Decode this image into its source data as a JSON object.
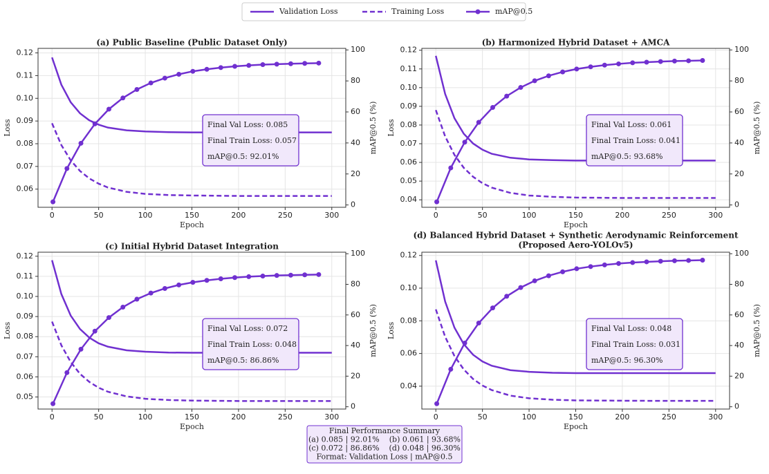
{
  "chart_data": [
    {
      "type": "line",
      "title": "(a) Public Baseline (Public Dataset Only)",
      "xlabel": "Epoch",
      "ylabel": "Loss",
      "y2label": "mAP@0.5 (%)",
      "xlim": [
        -15,
        315
      ],
      "xticks": [
        0,
        50,
        100,
        150,
        200,
        250,
        300
      ],
      "ylim": [
        0.052,
        0.122
      ],
      "yticks": [
        0.06,
        0.07,
        0.08,
        0.09,
        {
          "value": 0.1,
          "label": "0.10"
        },
        0.11,
        0.12
      ],
      "y2lim": [
        -1.5,
        101
      ],
      "y2ticks": [
        0,
        20,
        40,
        60,
        80,
        100
      ],
      "grid": true,
      "annotation": [
        "Final Val Loss: 0.085",
        "Final Train Loss: 0.057",
        "mAP@0.5: 92.01%"
      ],
      "series": [
        {
          "name": "Validation Loss",
          "color": "#7030d0",
          "dash": false,
          "marker": false,
          "x": [
            0,
            10,
            20,
            30,
            40,
            50,
            60,
            80,
            100,
            125,
            150,
            200,
            250,
            300
          ],
          "values": [
            0.118,
            0.106,
            0.0983,
            0.0934,
            0.0903,
            0.0884,
            0.0871,
            0.0859,
            0.0854,
            0.0851,
            0.085,
            0.085,
            0.085,
            0.085
          ]
        },
        {
          "name": "Training Loss",
          "color": "#7030d0",
          "dash": true,
          "marker": false,
          "x": [
            0,
            10,
            20,
            30,
            40,
            50,
            60,
            80,
            100,
            125,
            150,
            200,
            250,
            300
          ],
          "values": [
            0.089,
            0.0794,
            0.0727,
            0.068,
            0.0647,
            0.0624,
            0.0607,
            0.0588,
            0.0579,
            0.0574,
            0.0572,
            0.057,
            0.057,
            0.057
          ]
        },
        {
          "name": "mAP@0.5",
          "color": "#7030d0",
          "dash": false,
          "marker": true,
          "axis": "y2",
          "x": [
            1,
            16,
            31,
            46,
            61,
            76,
            91,
            106,
            121,
            136,
            151,
            166,
            181,
            196,
            211,
            226,
            241,
            256,
            271,
            286
          ],
          "values": [
            2,
            23.5,
            39.8,
            52.3,
            61.8,
            69,
            74.5,
            78.7,
            81.8,
            84.3,
            86.2,
            87.5,
            88.6,
            89.4,
            90,
            90.5,
            90.8,
            91.1,
            91.3,
            91.5
          ]
        }
      ]
    },
    {
      "type": "line",
      "title": "(b) Harmonized Hybrid Dataset + AMCA",
      "xlabel": "Epoch",
      "ylabel": "Loss",
      "y2label": "mAP@0.5 (%)",
      "xlim": [
        -15,
        315
      ],
      "xticks": [
        0,
        50,
        100,
        150,
        200,
        250,
        300
      ],
      "ylim": [
        0.036,
        0.121
      ],
      "yticks": [
        0.04,
        0.05,
        0.06,
        0.07,
        0.08,
        0.09,
        {
          "value": 0.1,
          "label": "0.10"
        },
        0.11,
        0.12
      ],
      "y2lim": [
        -1.5,
        101
      ],
      "y2ticks": [
        0,
        20,
        40,
        60,
        80,
        100
      ],
      "grid": true,
      "annotation": [
        "Final Val Loss: 0.061",
        "Final Train Loss: 0.041",
        "mAP@0.5: 93.68%"
      ],
      "series": [
        {
          "color": "#7030d0",
          "dash": false,
          "marker": false,
          "x": [
            0,
            10,
            20,
            30,
            40,
            50,
            60,
            80,
            100,
            125,
            150,
            200,
            250,
            300
          ],
          "values": [
            0.117,
            0.0966,
            0.0836,
            0.0753,
            0.0701,
            0.0668,
            0.0646,
            0.0625,
            0.0616,
            0.0612,
            0.061,
            0.061,
            0.061,
            0.061
          ]
        },
        {
          "color": "#7030d0",
          "dash": true,
          "marker": false,
          "x": [
            0,
            10,
            20,
            30,
            40,
            50,
            60,
            80,
            100,
            125,
            150,
            200,
            250,
            300
          ],
          "values": [
            0.088,
            0.0739,
            0.064,
            0.0571,
            0.0523,
            0.0489,
            0.0465,
            0.0437,
            0.0423,
            0.0416,
            0.0412,
            0.041,
            0.041,
            0.041
          ]
        },
        {
          "color": "#7030d0",
          "dash": false,
          "marker": true,
          "axis": "y2",
          "x": [
            1,
            16,
            31,
            46,
            61,
            76,
            91,
            106,
            121,
            136,
            151,
            166,
            181,
            196,
            211,
            226,
            241,
            256,
            271,
            286
          ],
          "values": [
            2,
            23.9,
            40.5,
            53.3,
            62.9,
            70.2,
            75.8,
            80.1,
            83.3,
            85.8,
            87.7,
            89.1,
            90.2,
            91,
            91.7,
            92.1,
            92.5,
            92.8,
            93,
            93.2
          ]
        }
      ]
    },
    {
      "type": "line",
      "title": "(c) Initial Hybrid Dataset Integration",
      "xlabel": "Epoch",
      "ylabel": "Loss",
      "y2label": "mAP@0.5 (%)",
      "xlim": [
        -15,
        315
      ],
      "xticks": [
        0,
        50,
        100,
        150,
        200,
        250,
        300
      ],
      "ylim": [
        0.044,
        0.122
      ],
      "yticks": [
        0.05,
        0.06,
        0.07,
        0.08,
        0.09,
        {
          "value": 0.1,
          "label": "0.10"
        },
        0.11,
        0.12
      ],
      "y2lim": [
        -1.5,
        101
      ],
      "y2ticks": [
        0,
        20,
        40,
        60,
        80,
        100
      ],
      "grid": true,
      "annotation": [
        "Final Val Loss: 0.072",
        "Final Train Loss: 0.048",
        "mAP@0.5: 86.86%"
      ],
      "series": [
        {
          "color": "#7030d0",
          "dash": false,
          "marker": false,
          "x": [
            0,
            10,
            20,
            30,
            40,
            50,
            60,
            80,
            100,
            125,
            150,
            200,
            250,
            300
          ],
          "values": [
            0.118,
            0.1012,
            0.0905,
            0.0838,
            0.0795,
            0.0767,
            0.075,
            0.0732,
            0.0725,
            0.0721,
            0.072,
            0.072,
            0.072,
            0.072
          ]
        },
        {
          "color": "#7030d0",
          "dash": true,
          "marker": false,
          "x": [
            0,
            10,
            20,
            30,
            40,
            50,
            60,
            80,
            100,
            125,
            150,
            200,
            250,
            300
          ],
          "values": [
            0.0875,
            0.0757,
            0.0674,
            0.0615,
            0.0575,
            0.0546,
            0.0526,
            0.0503,
            0.0491,
            0.0485,
            0.0482,
            0.048,
            0.048,
            0.048
          ]
        },
        {
          "color": "#7030d0",
          "dash": false,
          "marker": true,
          "axis": "y2",
          "x": [
            1,
            16,
            31,
            46,
            61,
            76,
            91,
            106,
            121,
            136,
            151,
            166,
            181,
            196,
            211,
            226,
            241,
            256,
            271,
            286
          ],
          "values": [
            2,
            22.3,
            37.6,
            49.4,
            58.3,
            65.1,
            70.3,
            74.3,
            77.3,
            79.6,
            81.3,
            82.6,
            83.6,
            84.4,
            85,
            85.4,
            85.8,
            86,
            86.2,
            86.4
          ]
        }
      ]
    },
    {
      "type": "line",
      "title": [
        "(d) Balanced Hybrid Dataset + Synthetic Aerodynamic Reinforcement",
        "(Proposed Aero-YOLOv5)"
      ],
      "xlabel": "Epoch",
      "ylabel": "Loss",
      "y2label": "mAP@0.5 (%)",
      "xlim": [
        -15,
        315
      ],
      "xticks": [
        0,
        50,
        100,
        150,
        200,
        250,
        300
      ],
      "ylim": [
        0.026,
        0.122
      ],
      "yticks": [
        0.04,
        0.06,
        0.08,
        {
          "value": 0.1,
          "label": "0.10"
        },
        0.12
      ],
      "y2lim": [
        -1.5,
        101
      ],
      "y2ticks": [
        0,
        20,
        40,
        60,
        80,
        100
      ],
      "grid": true,
      "annotation": [
        "Final Val Loss: 0.048",
        "Final Train Loss: 0.031",
        "mAP@0.5: 96.30%"
      ],
      "series": [
        {
          "color": "#7030d0",
          "dash": false,
          "marker": false,
          "x": [
            0,
            10,
            20,
            30,
            40,
            50,
            60,
            80,
            100,
            125,
            150,
            200,
            250,
            300
          ],
          "values": [
            0.117,
            0.0918,
            0.0758,
            0.0657,
            0.0592,
            0.0551,
            0.0525,
            0.0498,
            0.0488,
            0.0482,
            0.048,
            0.048,
            0.048,
            0.048
          ]
        },
        {
          "color": "#7030d0",
          "dash": true,
          "marker": false,
          "x": [
            0,
            10,
            20,
            30,
            40,
            50,
            60,
            80,
            100,
            125,
            150,
            200,
            250,
            300
          ],
          "values": [
            0.087,
            0.0702,
            0.0584,
            0.0502,
            0.0444,
            0.0404,
            0.0376,
            0.0342,
            0.0326,
            0.0317,
            0.0313,
            0.0311,
            0.031,
            0.031
          ]
        },
        {
          "color": "#7030d0",
          "dash": false,
          "marker": true,
          "axis": "y2",
          "x": [
            1,
            16,
            31,
            46,
            61,
            76,
            91,
            106,
            121,
            136,
            151,
            166,
            181,
            196,
            211,
            226,
            241,
            256,
            271,
            286
          ],
          "values": [
            2,
            24.5,
            41.6,
            54.7,
            64.6,
            72.2,
            77.9,
            82.3,
            85.6,
            88.2,
            90.2,
            91.6,
            92.7,
            93.6,
            94.2,
            94.7,
            95.1,
            95.4,
            95.6,
            95.8
          ]
        }
      ]
    }
  ],
  "summary": [
    "Final Performance Summary",
    "(a) 0.085 | 92.01%    (b) 0.061 | 93.68%",
    "(c) 0.072 | 86.86%    (d) 0.048 | 96.30%",
    "Format: Validation Loss | mAP@0.5"
  ]
}
